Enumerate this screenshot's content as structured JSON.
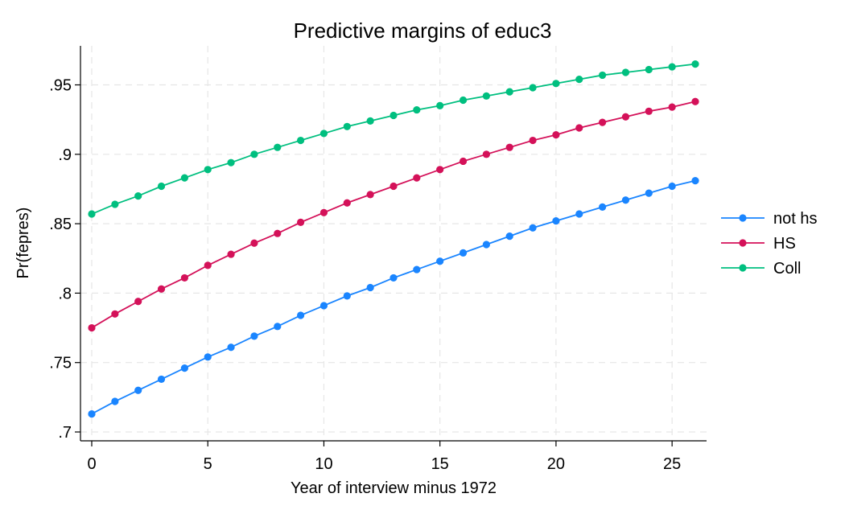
{
  "chart_data": {
    "type": "line",
    "title": "Predictive margins of educ3",
    "xlabel": "Year of interview minus 1972",
    "ylabel": "Pr(fepres)",
    "x": [
      0,
      1,
      2,
      3,
      4,
      5,
      6,
      7,
      8,
      9,
      10,
      11,
      12,
      13,
      14,
      15,
      16,
      17,
      18,
      19,
      20,
      21,
      22,
      23,
      24,
      25,
      26
    ],
    "xlim": [
      0,
      26
    ],
    "ylim": [
      0.7,
      0.97
    ],
    "x_ticks": [
      0,
      5,
      10,
      15,
      20,
      25
    ],
    "x_tick_labels": [
      "0",
      "5",
      "10",
      "15",
      "20",
      "25"
    ],
    "y_ticks": [
      0.7,
      0.75,
      0.8,
      0.85,
      0.9,
      0.95
    ],
    "y_tick_labels": [
      ".7",
      ".75",
      ".8",
      ".85",
      ".9",
      ".95"
    ],
    "grid": true,
    "legend_position": "right",
    "series": [
      {
        "name": "not hs",
        "color": "#1a85ff",
        "values": [
          0.713,
          0.722,
          0.73,
          0.738,
          0.746,
          0.754,
          0.761,
          0.769,
          0.776,
          0.784,
          0.791,
          0.798,
          0.804,
          0.811,
          0.817,
          0.823,
          0.829,
          0.835,
          0.841,
          0.847,
          0.852,
          0.857,
          0.862,
          0.867,
          0.872,
          0.877,
          0.881
        ]
      },
      {
        "name": "HS",
        "color": "#d41159",
        "values": [
          0.775,
          0.785,
          0.794,
          0.803,
          0.811,
          0.82,
          0.828,
          0.836,
          0.843,
          0.851,
          0.858,
          0.865,
          0.871,
          0.877,
          0.883,
          0.889,
          0.895,
          0.9,
          0.905,
          0.91,
          0.914,
          0.919,
          0.923,
          0.927,
          0.931,
          0.934,
          0.938
        ]
      },
      {
        "name": "Coll",
        "color": "#00bf7f",
        "values": [
          0.857,
          0.864,
          0.87,
          0.877,
          0.883,
          0.889,
          0.894,
          0.9,
          0.905,
          0.91,
          0.915,
          0.92,
          0.924,
          0.928,
          0.932,
          0.935,
          0.939,
          0.942,
          0.945,
          0.948,
          0.951,
          0.954,
          0.957,
          0.959,
          0.961,
          0.963,
          0.965
        ]
      }
    ]
  }
}
